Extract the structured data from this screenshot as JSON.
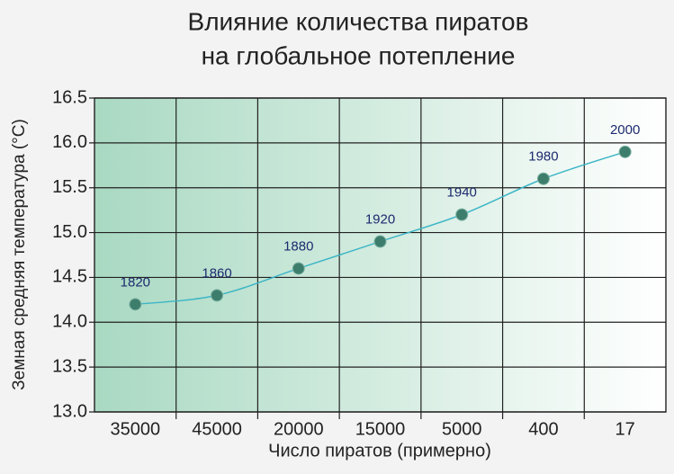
{
  "chart_data": {
    "type": "line",
    "title": [
      "Влияние количества пиратов",
      "на глобальное потепление"
    ],
    "x_label": "Число пиратов (примерно)",
    "y_label": "Земная средняя температура (°C)",
    "categories": [
      "35000",
      "45000",
      "20000",
      "15000",
      "5000",
      "400",
      "17"
    ],
    "values": [
      14.2,
      14.3,
      14.6,
      14.9,
      15.2,
      15.6,
      15.9
    ],
    "point_labels": [
      "1820",
      "1860",
      "1880",
      "1920",
      "1940",
      "1980",
      "2000"
    ],
    "color": "#3db6c6",
    "marker_color": "#3d7d6b",
    "ylim": [
      13.0,
      16.5
    ],
    "yticks": [
      {
        "value": 13.0,
        "label": "13.0"
      },
      13.5,
      {
        "value": 14.0,
        "label": "14.0"
      },
      14.5,
      {
        "value": 15.0,
        "label": "15.0"
      },
      15.5,
      {
        "value": 16.0,
        "label": "16.0"
      },
      16.5
    ],
    "grid": true
  }
}
